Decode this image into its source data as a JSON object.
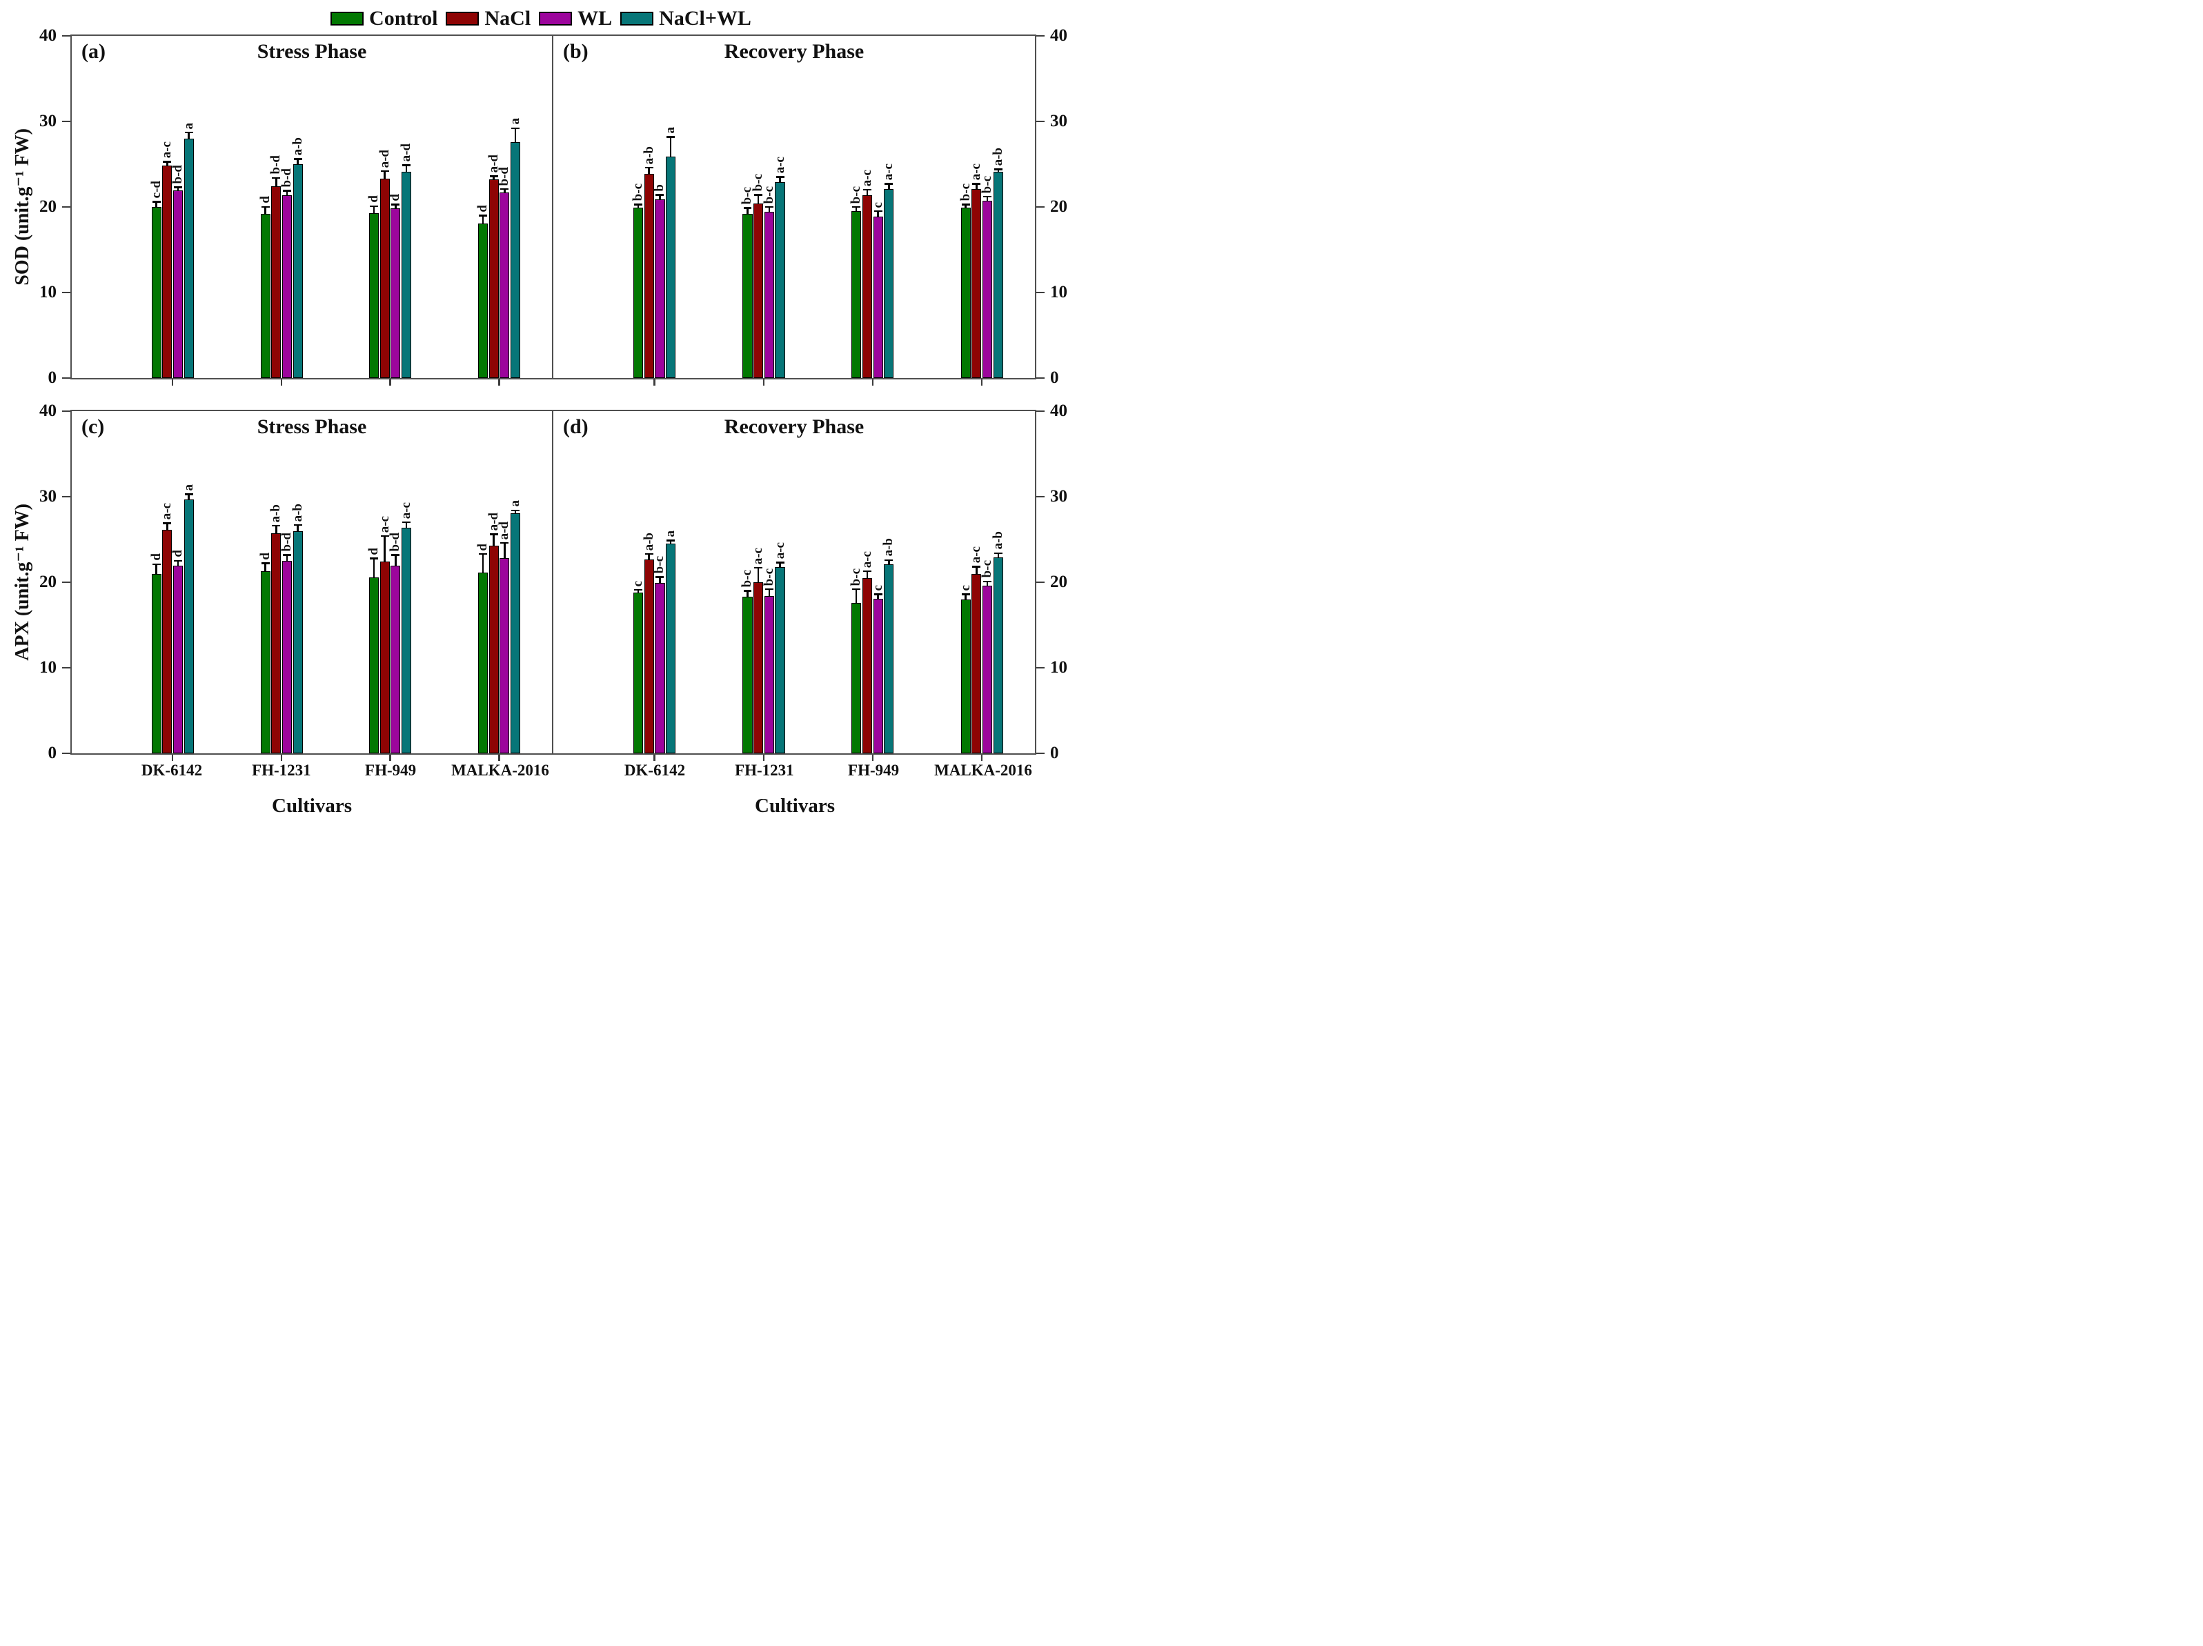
{
  "legend": {
    "items": [
      {
        "label": "Control",
        "color": "#027802"
      },
      {
        "label": "NaCl",
        "color": "#8e0404"
      },
      {
        "label": "WL",
        "color": "#9c059c"
      },
      {
        "label": "NaCl+WL",
        "color": "#077678"
      }
    ]
  },
  "axes": {
    "ylim": [
      0,
      40
    ],
    "y_ticks": [
      0,
      10,
      20,
      30,
      40
    ],
    "categories": [
      "DK-6142",
      "FH-1231",
      "FH-949",
      "MALKA-2016"
    ],
    "x_title": "Cultivars",
    "row_ylabels": [
      "SOD (unit.g⁻¹ FW)",
      "APX (unit.g⁻¹ FW)"
    ]
  },
  "chart_data": [
    {
      "id": "a",
      "panel_label": "(a)",
      "title": "Stress Phase",
      "type": "bar",
      "ylabel": "SOD (unit.g⁻¹ FW)",
      "ylim": [
        0,
        40
      ],
      "grid": false,
      "legend_position": "top",
      "categories": [
        "DK-6142",
        "FH-1231",
        "FH-949",
        "MALKA-2016"
      ],
      "series": [
        {
          "name": "Control",
          "values": [
            20.0,
            19.2,
            19.3,
            18.1
          ],
          "errors": [
            0.6,
            0.8,
            0.8,
            0.9
          ],
          "letters": [
            "c-d",
            "d",
            "d",
            "d"
          ]
        },
        {
          "name": "NaCl",
          "values": [
            24.8,
            22.4,
            23.3,
            23.2
          ],
          "errors": [
            0.5,
            1.0,
            0.9,
            0.4
          ],
          "letters": [
            "a-c",
            "b-d",
            "a-d",
            "a-d"
          ]
        },
        {
          "name": "WL",
          "values": [
            21.9,
            21.4,
            19.8,
            21.7
          ],
          "errors": [
            0.4,
            0.5,
            0.5,
            0.4
          ],
          "letters": [
            "b-d",
            "b-d",
            "d",
            "b-d"
          ]
        },
        {
          "name": "NaCl+WL",
          "values": [
            28.0,
            25.0,
            24.1,
            27.6
          ],
          "errors": [
            0.7,
            0.6,
            0.8,
            1.6
          ],
          "letters": [
            "a",
            "a-b",
            "a-d",
            "a"
          ]
        }
      ]
    },
    {
      "id": "b",
      "panel_label": "(b)",
      "title": "Recovery Phase",
      "type": "bar",
      "ylabel": "SOD (unit.g⁻¹ FW)",
      "ylim": [
        0,
        40
      ],
      "grid": false,
      "legend_position": "top",
      "categories": [
        "DK-6142",
        "FH-1231",
        "FH-949",
        "MALKA-2016"
      ],
      "series": [
        {
          "name": "Control",
          "values": [
            19.9,
            19.2,
            19.5,
            19.9
          ],
          "errors": [
            0.4,
            0.7,
            0.5,
            0.4
          ],
          "letters": [
            "b-c",
            "b-c",
            "b-c",
            "b-c"
          ]
        },
        {
          "name": "NaCl",
          "values": [
            23.9,
            20.4,
            21.4,
            22.1
          ],
          "errors": [
            0.7,
            1.0,
            0.6,
            0.6
          ],
          "letters": [
            "a-b",
            "b-c",
            "a-c",
            "a-c"
          ]
        },
        {
          "name": "WL",
          "values": [
            20.9,
            19.4,
            18.9,
            20.7
          ],
          "errors": [
            0.5,
            0.6,
            0.6,
            0.5
          ],
          "letters": [
            "b",
            "b-c",
            "c",
            "b-c"
          ]
        },
        {
          "name": "NaCl+WL",
          "values": [
            25.9,
            22.9,
            22.1,
            24.1
          ],
          "errors": [
            2.3,
            0.6,
            0.6,
            0.3
          ],
          "letters": [
            "a",
            "a-c",
            "a-c",
            "a-b"
          ]
        }
      ]
    },
    {
      "id": "c",
      "panel_label": "(c)",
      "title": "Stress Phase",
      "type": "bar",
      "ylabel": "APX (unit.g⁻¹ FW)",
      "ylim": [
        0,
        40
      ],
      "grid": false,
      "legend_position": "top",
      "categories": [
        "DK-6142",
        "FH-1231",
        "FH-949",
        "MALKA-2016"
      ],
      "series": [
        {
          "name": "Control",
          "values": [
            21.0,
            21.3,
            20.6,
            21.1
          ],
          "errors": [
            1.1,
            0.9,
            2.2,
            2.2
          ],
          "letters": [
            "d",
            "d",
            "d",
            "d"
          ]
        },
        {
          "name": "NaCl",
          "values": [
            26.1,
            25.7,
            22.4,
            24.3
          ],
          "errors": [
            0.8,
            0.9,
            3.0,
            1.3
          ],
          "letters": [
            "a-c",
            "a-b",
            "a-c",
            "a-d"
          ]
        },
        {
          "name": "WL",
          "values": [
            21.9,
            22.5,
            21.9,
            22.8
          ],
          "errors": [
            0.6,
            0.7,
            1.3,
            1.8
          ],
          "letters": [
            "d",
            "b-d",
            "b-d",
            "a-d"
          ]
        },
        {
          "name": "NaCl+WL",
          "values": [
            29.7,
            26.0,
            26.4,
            28.1
          ],
          "errors": [
            0.6,
            0.7,
            0.6,
            0.3
          ],
          "letters": [
            "a",
            "a-b",
            "a-c",
            "a"
          ]
        }
      ]
    },
    {
      "id": "d",
      "panel_label": "(d)",
      "title": "Recovery Phase",
      "type": "bar",
      "ylabel": "APX (unit.g⁻¹ FW)",
      "ylim": [
        0,
        40
      ],
      "grid": false,
      "legend_position": "top",
      "categories": [
        "DK-6142",
        "FH-1231",
        "FH-949",
        "MALKA-2016"
      ],
      "series": [
        {
          "name": "Control",
          "values": [
            18.8,
            18.3,
            17.6,
            18.0
          ],
          "errors": [
            0.3,
            0.7,
            1.6,
            0.6
          ],
          "letters": [
            "c",
            "b-c",
            "b-c",
            "c"
          ]
        },
        {
          "name": "NaCl",
          "values": [
            22.7,
            20.0,
            20.5,
            21.0
          ],
          "errors": [
            0.6,
            1.7,
            0.8,
            0.8
          ],
          "letters": [
            "a-b",
            "a-c",
            "a-c",
            "a-c"
          ]
        },
        {
          "name": "WL",
          "values": [
            19.9,
            18.4,
            18.1,
            19.6
          ],
          "errors": [
            0.7,
            0.8,
            0.5,
            0.5
          ],
          "letters": [
            "b-c",
            "b-c",
            "c",
            "b-c"
          ]
        },
        {
          "name": "NaCl+WL",
          "values": [
            24.5,
            21.8,
            22.1,
            22.9
          ],
          "errors": [
            0.4,
            0.5,
            0.5,
            0.5
          ],
          "letters": [
            "a",
            "a-c",
            "a-b",
            "a-b"
          ]
        }
      ]
    }
  ]
}
